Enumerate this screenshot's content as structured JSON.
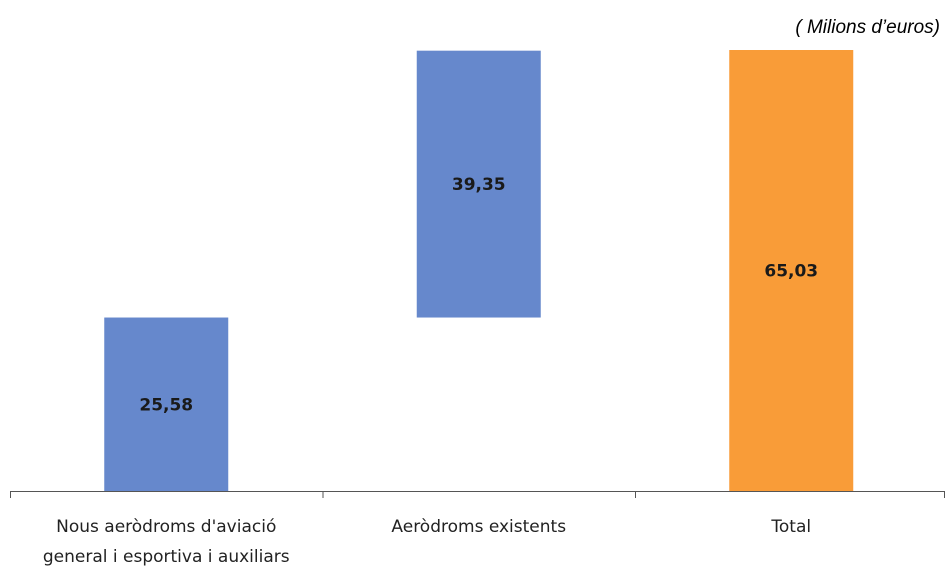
{
  "chart_data": {
    "type": "bar",
    "subtype": "waterfall",
    "unit_note": "( Milions d’euros)",
    "categories": [
      [
        "Nous aeròdroms d'aviació",
        "general i esportiva i auxiliars"
      ],
      [
        "Aeròdroms existents"
      ],
      [
        "Total"
      ]
    ],
    "values": [
      25.58,
      39.35,
      65.03
    ],
    "data_labels": [
      "25,58",
      "39,35",
      "65,03"
    ],
    "bar_roles": [
      "increment",
      "increment",
      "total"
    ],
    "ylim": [
      0,
      65.03
    ],
    "grid": false,
    "legend": "none",
    "colors": {
      "increment": "#6688cc",
      "total": "#f99c38",
      "axis": "#555555"
    }
  }
}
